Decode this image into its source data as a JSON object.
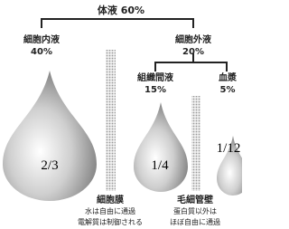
{
  "header": {
    "title": "体液 60%"
  },
  "nodes": [
    {
      "label": "細胞内液",
      "percent": "40%",
      "fraction": "2/3"
    },
    {
      "label": "細胞外液",
      "percent": "20%"
    },
    {
      "label": "組織間液",
      "percent": "15%",
      "fraction": "1/4"
    },
    {
      "label": "血漿",
      "percent": "5%",
      "fraction": "1/12"
    }
  ],
  "barriers": [
    {
      "label": "細胞膜",
      "notes": [
        "水は自由に通過",
        "電解質は制御される"
      ]
    },
    {
      "label": "毛細管壁",
      "notes": [
        "蛋白質以外は",
        "ほぼ自由に通過"
      ]
    }
  ]
}
